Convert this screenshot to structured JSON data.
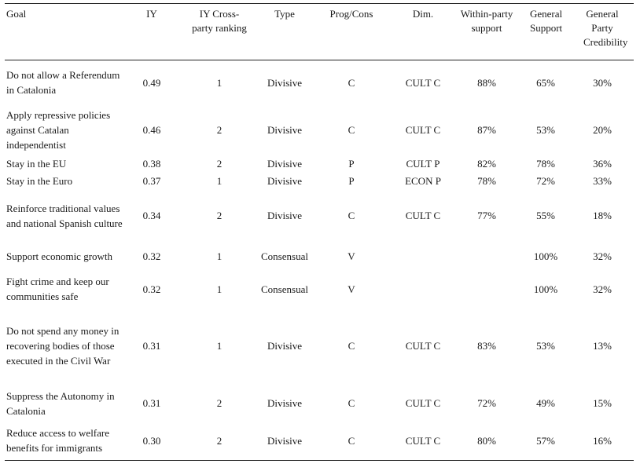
{
  "headers": {
    "goal": "Goal",
    "iy": "IY",
    "ranking": "IY Cross-party ranking",
    "type": "Type",
    "progcons": "Prog/Cons",
    "dim": "Dim.",
    "within": "Within-party support",
    "general": "General Support",
    "cred": "General Party Credibility"
  },
  "rows": [
    {
      "goal": "Do not allow a Referendum in Catalonia",
      "iy": "0.49",
      "rank": "1",
      "type": "Divisive",
      "pc": "C",
      "dim": "CULT C",
      "within": "88%",
      "general": "65%",
      "cred": "30%"
    },
    {
      "goal": "Apply repressive policies against Catalan independentist",
      "iy": "0.46",
      "rank": "2",
      "type": "Divisive",
      "pc": "C",
      "dim": "CULT C",
      "within": "87%",
      "general": "53%",
      "cred": "20%"
    },
    {
      "goal": "Stay in the EU",
      "iy": "0.38",
      "rank": "2",
      "type": "Divisive",
      "pc": "P",
      "dim": "CULT P",
      "within": "82%",
      "general": "78%",
      "cred": "36%"
    },
    {
      "goal": "Stay in the Euro",
      "iy": "0.37",
      "rank": "1",
      "type": "Divisive",
      "pc": "P",
      "dim": "ECON P",
      "within": "78%",
      "general": "72%",
      "cred": "33%"
    },
    {
      "goal": "Reinforce traditional values and national Spanish culture",
      "iy": "0.34",
      "rank": "2",
      "type": "Divisive",
      "pc": "C",
      "dim": "CULT C",
      "within": "77%",
      "general": "55%",
      "cred": "18%"
    },
    {
      "goal": "Support economic growth",
      "iy": "0.32",
      "rank": "1",
      "type": "Consensual",
      "pc": "V",
      "dim": "",
      "within": "",
      "general": "100%",
      "cred": "32%"
    },
    {
      "goal": "Fight crime and keep our communities safe",
      "iy": "0.32",
      "rank": "1",
      "type": "Consensual",
      "pc": "V",
      "dim": "",
      "within": "",
      "general": "100%",
      "cred": "32%"
    },
    {
      "goal": "Do not spend any money in recovering bodies of those executed in the Civil War",
      "iy": "0.31",
      "rank": "1",
      "type": "Divisive",
      "pc": "C",
      "dim": "CULT C",
      "within": "83%",
      "general": "53%",
      "cred": "13%"
    },
    {
      "goal": "Suppress the Autonomy in Catalonia",
      "iy": "0.31",
      "rank": "2",
      "type": "Divisive",
      "pc": "C",
      "dim": "CULT C",
      "within": "72%",
      "general": "49%",
      "cred": "15%"
    },
    {
      "goal": "Reduce access to welfare benefits for immigrants",
      "iy": "0.30",
      "rank": "2",
      "type": "Divisive",
      "pc": "C",
      "dim": "CULT C",
      "within": "80%",
      "general": "57%",
      "cred": "16%"
    }
  ]
}
